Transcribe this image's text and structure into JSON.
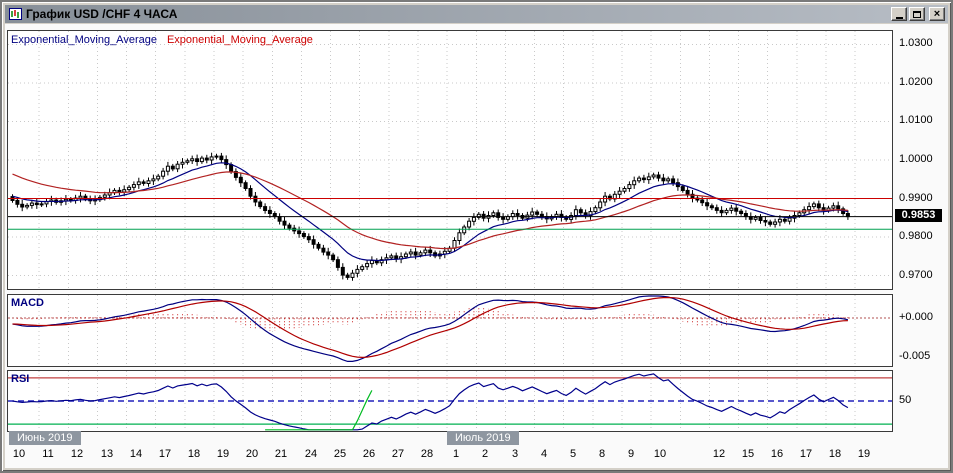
{
  "window": {
    "title": "График USD /CHF  4 ЧАСА",
    "controls": [
      "minimize",
      "maximize",
      "close"
    ]
  },
  "indicators": {
    "ema_labels": [
      {
        "label": "Exponential_Moving_Average",
        "color": "#000080"
      },
      {
        "label": "Exponential_Moving_Average",
        "color": "#cc0000"
      }
    ],
    "macd_label": "MACD",
    "rsi_label": "RSI"
  },
  "price_axis": {
    "labels": [
      "1.0300",
      "1.0200",
      "1.0100",
      "1.0000",
      "0.9900",
      "0.9800",
      "0.9700"
    ],
    "current_price": "0.9853"
  },
  "time_axis": {
    "labels": [
      {
        "label": "10",
        "day": 0
      },
      {
        "label": "11",
        "day": 1
      },
      {
        "label": "12",
        "day": 2
      },
      {
        "label": "13",
        "day": 3
      },
      {
        "label": "14",
        "day": 4
      },
      {
        "label": "17",
        "day": 5
      },
      {
        "label": "18",
        "day": 6
      },
      {
        "label": "19",
        "day": 7
      },
      {
        "label": "20",
        "day": 8
      },
      {
        "label": "21",
        "day": 9
      },
      {
        "label": "24",
        "day": 10
      },
      {
        "label": "25",
        "day": 11
      },
      {
        "label": "26",
        "day": 12
      },
      {
        "label": "27",
        "day": 13
      },
      {
        "label": "28",
        "day": 14
      },
      {
        "label": "1",
        "day": 15
      },
      {
        "label": "2",
        "day": 16
      },
      {
        "label": "3",
        "day": 17
      },
      {
        "label": "4",
        "day": 18
      },
      {
        "label": "5",
        "day": 19
      },
      {
        "label": "8",
        "day": 20
      },
      {
        "label": "9",
        "day": 21
      },
      {
        "label": "10",
        "day": 22
      },
      {
        "label": "12",
        "day": 24
      },
      {
        "label": "15",
        "day": 25
      },
      {
        "label": "16",
        "day": 26
      },
      {
        "label": "17",
        "day": 27
      },
      {
        "label": "18",
        "day": 28
      },
      {
        "label": "19",
        "day": 29
      }
    ],
    "months": [
      {
        "label": "Июнь 2019",
        "day_index": 0
      },
      {
        "label": "Июль 2019",
        "day_index": 15
      }
    ]
  },
  "chart_data": [
    {
      "type": "candlestick",
      "symbol": "USD/CHF",
      "timeframe": "4H",
      "candles_per_day": 6,
      "first_open": 0.9905,
      "closes": [
        0.9895,
        0.9885,
        0.9878,
        0.9882,
        0.9888,
        0.9884,
        0.9886,
        0.9892,
        0.9896,
        0.989,
        0.9894,
        0.9898,
        0.9895,
        0.9901,
        0.9906,
        0.9899,
        0.9894,
        0.9897,
        0.9903,
        0.9909,
        0.9915,
        0.9921,
        0.9917,
        0.9923,
        0.9929,
        0.9936,
        0.9943,
        0.9939,
        0.9946,
        0.9951,
        0.9958,
        0.9971,
        0.9984,
        0.9977,
        0.9989,
        0.9994,
        0.9998,
        1.0003,
        0.9996,
        1.0005,
        1.0,
        1.0008,
        1.001,
        1.0001,
        0.9988,
        0.997,
        0.9955,
        0.9941,
        0.9926,
        0.9906,
        0.9891,
        0.9879,
        0.9869,
        0.9861,
        0.9853,
        0.9841,
        0.9831,
        0.9823,
        0.9816,
        0.9809,
        0.9801,
        0.9793,
        0.9781,
        0.9771,
        0.9761,
        0.9753,
        0.9741,
        0.9721,
        0.9701,
        0.9695,
        0.9706,
        0.9716,
        0.9723,
        0.9731,
        0.9739,
        0.9733,
        0.9741,
        0.9746,
        0.9751,
        0.9743,
        0.9749,
        0.9756,
        0.9761,
        0.9753,
        0.9759,
        0.9766,
        0.9759,
        0.9751,
        0.9756,
        0.9763,
        0.9771,
        0.9791,
        0.9811,
        0.9826,
        0.9841,
        0.9851,
        0.9859,
        0.9849,
        0.9856,
        0.9863,
        0.9851,
        0.9846,
        0.9853,
        0.9861,
        0.9856,
        0.9849,
        0.9857,
        0.9865,
        0.9859,
        0.9853,
        0.9847,
        0.9853,
        0.9859,
        0.9851,
        0.9846,
        0.9856,
        0.9871,
        0.9863,
        0.9856,
        0.9866,
        0.9876,
        0.9891,
        0.9906,
        0.9899,
        0.9911,
        0.9919,
        0.9926,
        0.9936,
        0.9946,
        0.9953,
        0.9949,
        0.9956,
        0.9961,
        0.9953,
        0.9946,
        0.9951,
        0.9941,
        0.9931,
        0.9921,
        0.9911,
        0.9901,
        0.9896,
        0.9889,
        0.9881,
        0.9876,
        0.9869,
        0.9863,
        0.9869,
        0.9875,
        0.9867,
        0.9861,
        0.9853,
        0.9846,
        0.9851,
        0.9843,
        0.9839,
        0.9833,
        0.9839,
        0.9846,
        0.9841,
        0.9849,
        0.9856,
        0.9863,
        0.9871,
        0.9879,
        0.9886,
        0.9876,
        0.9869,
        0.9875,
        0.9881,
        0.9873,
        0.9861,
        0.9853
      ],
      "y_ticks": [
        1.03,
        1.02,
        1.01,
        1.0,
        0.99,
        0.98,
        0.97
      ],
      "ylim": [
        0.9665,
        1.0335
      ],
      "levels": {
        "resistance": {
          "value": 0.99,
          "color": "#cc0000"
        },
        "support": {
          "value": 0.982,
          "color": "#00a050"
        },
        "current": {
          "value": 0.9853,
          "color": "#000000"
        }
      },
      "overlays": [
        {
          "name": "Exponential_Moving_Average",
          "period": 12,
          "color": "#000080",
          "seed": 0.9908
        },
        {
          "name": "Exponential_Moving_Average",
          "period": 30,
          "color": "#b22222",
          "seed": 0.9968
        }
      ]
    },
    {
      "type": "line",
      "name": "MACD",
      "derived_from": "closes",
      "params": {
        "fast": 12,
        "slow": 26,
        "signal": 9,
        "seed_fast": 0.9908,
        "seed_slow": 0.9915
      },
      "y_ticks": [
        {
          "value": 0,
          "label": "+0.000"
        },
        {
          "value": -0.005,
          "label": "-0.005"
        }
      ],
      "ylim": [
        -0.0062,
        0.003
      ],
      "colors": {
        "macd": "#000080",
        "signal": "#b00000",
        "histogram": "#cc2222",
        "zero": "#b05050"
      }
    },
    {
      "type": "line",
      "name": "RSI",
      "params": {
        "period": 21,
        "seed": 0.0018,
        "fast_period": 5,
        "fast_seed": 0.001,
        "fast_range": [
          52,
          74
        ]
      },
      "levels": [
        {
          "value": 70,
          "color": "#c04040",
          "style": "solid"
        },
        {
          "value": 50,
          "color": "#2222bb",
          "style": "dashed",
          "label": "50"
        },
        {
          "value": 30,
          "color": "#00b050",
          "style": "solid"
        }
      ],
      "ylim": [
        24,
        76
      ],
      "colors": {
        "rsi": "#00008b",
        "fast": "#00bb22"
      }
    }
  ],
  "theme": {
    "titlebar_left": "#878f98",
    "titlebar_right": "#b7bdc5",
    "panel_bg": "#ffffff",
    "grid": "#c9c9c9",
    "candle_up": "#ffffff",
    "candle_down": "#000000",
    "month_box": "#8e96a0",
    "price_tag_bg": "#000000"
  }
}
